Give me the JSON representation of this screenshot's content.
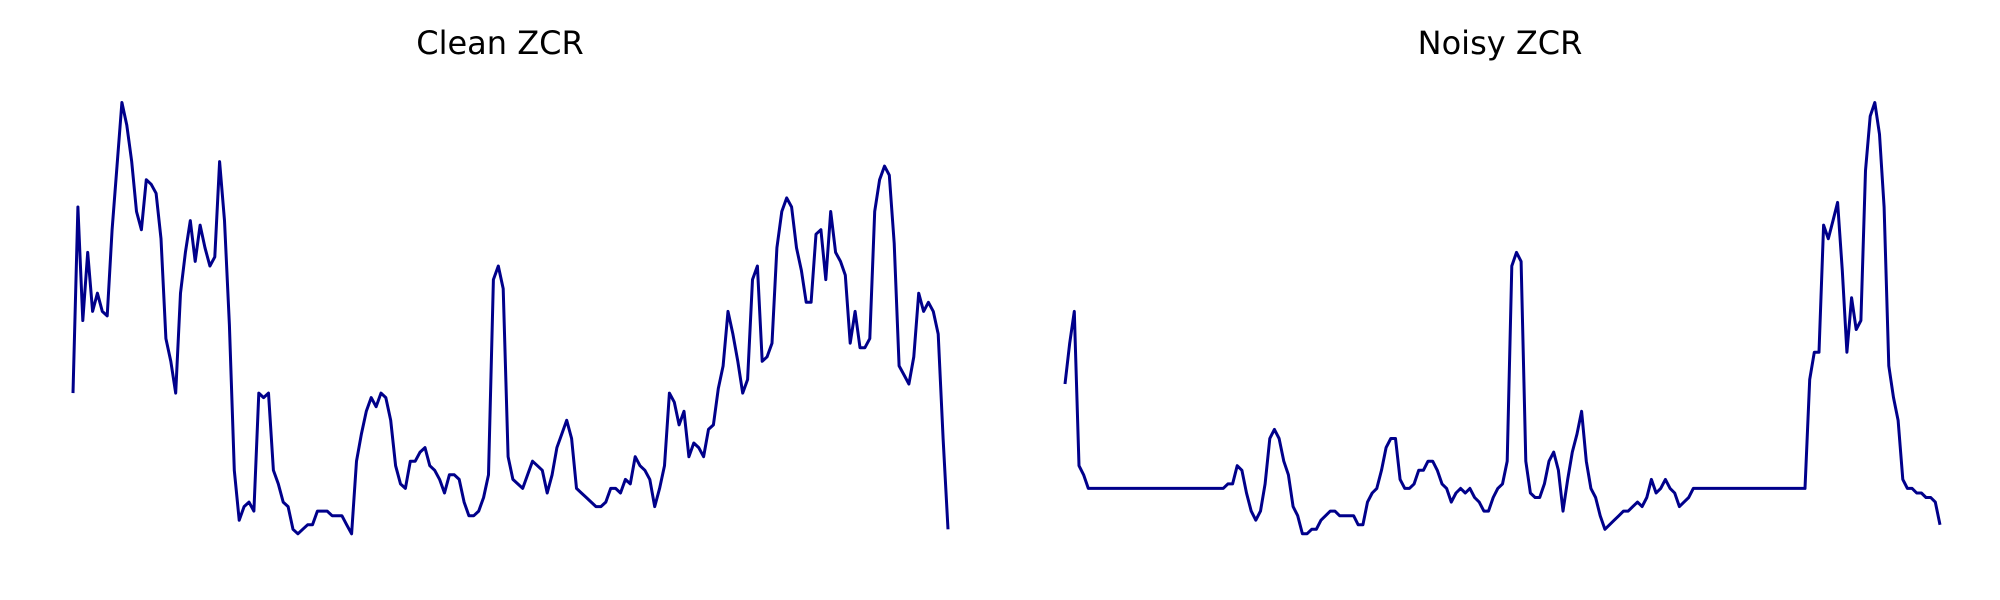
{
  "colors": {
    "line": "#00008B",
    "background": "#ffffff"
  },
  "chart_data": [
    {
      "type": "line",
      "title": "Clean ZCR",
      "xlabel": "",
      "ylabel": "",
      "axes": "off",
      "grid": false,
      "xlim": [
        0,
        118
      ],
      "ylim": [
        0,
        1
      ],
      "series": [
        {
          "values": [
            0.35,
            0.76,
            0.51,
            0.66,
            0.53,
            0.57,
            0.53,
            0.52,
            0.71,
            0.85,
            0.99,
            0.94,
            0.86,
            0.75,
            0.71,
            0.82,
            0.81,
            0.79,
            0.69,
            0.47,
            0.42,
            0.35,
            0.57,
            0.66,
            0.73,
            0.64,
            0.72,
            0.67,
            0.63,
            0.65,
            0.86,
            0.73,
            0.5,
            0.18,
            0.07,
            0.1,
            0.11,
            0.09,
            0.35,
            0.34,
            0.35,
            0.18,
            0.15,
            0.11,
            0.1,
            0.05,
            0.04,
            0.05,
            0.06,
            0.06,
            0.09,
            0.09,
            0.09,
            0.08,
            0.08,
            0.08,
            0.06,
            0.04,
            0.2,
            0.26,
            0.31,
            0.34,
            0.32,
            0.35,
            0.34,
            0.29,
            0.19,
            0.15,
            0.14,
            0.2,
            0.2,
            0.22,
            0.23,
            0.19,
            0.18,
            0.16,
            0.13,
            0.17,
            0.17,
            0.16,
            0.11,
            0.08,
            0.08,
            0.09,
            0.12,
            0.17,
            0.6,
            0.63,
            0.58,
            0.21,
            0.16,
            0.15,
            0.14,
            0.17,
            0.2,
            0.19,
            0.18,
            0.13,
            0.17,
            0.23,
            0.26,
            0.29,
            0.25,
            0.14,
            0.13,
            0.12,
            0.11,
            0.1,
            0.1,
            0.11,
            0.14,
            0.14,
            0.13,
            0.16,
            0.15,
            0.21,
            0.19,
            0.18,
            0.16,
            0.1,
            0.14,
            0.19,
            0.35,
            0.33,
            0.28,
            0.31,
            0.21,
            0.24,
            0.23,
            0.21,
            0.27,
            0.28,
            0.36,
            0.41,
            0.53,
            0.48,
            0.42,
            0.35,
            0.38,
            0.6,
            0.63,
            0.42,
            0.43,
            0.46,
            0.67,
            0.75,
            0.78,
            0.76,
            0.67,
            0.62,
            0.55,
            0.55,
            0.7,
            0.71,
            0.6,
            0.75,
            0.66,
            0.64,
            0.61,
            0.46,
            0.53,
            0.45,
            0.45,
            0.47,
            0.75,
            0.82,
            0.85,
            0.83,
            0.68,
            0.41,
            0.39,
            0.37,
            0.43,
            0.57,
            0.53,
            0.55,
            0.53,
            0.48,
            0.25,
            0.05
          ]
        }
      ]
    },
    {
      "type": "line",
      "title": "Noisy ZCR",
      "xlabel": "",
      "ylabel": "",
      "axes": "off",
      "grid": false,
      "xlim": [
        0,
        118
      ],
      "ylim": [
        0,
        1
      ],
      "series": [
        {
          "values": [
            0.37,
            0.46,
            0.53,
            0.19,
            0.17,
            0.14,
            0.14,
            0.14,
            0.14,
            0.14,
            0.14,
            0.14,
            0.14,
            0.14,
            0.14,
            0.14,
            0.14,
            0.14,
            0.14,
            0.14,
            0.14,
            0.14,
            0.14,
            0.14,
            0.14,
            0.14,
            0.14,
            0.14,
            0.14,
            0.14,
            0.14,
            0.14,
            0.14,
            0.14,
            0.14,
            0.15,
            0.15,
            0.19,
            0.18,
            0.13,
            0.09,
            0.07,
            0.09,
            0.15,
            0.25,
            0.27,
            0.25,
            0.2,
            0.17,
            0.1,
            0.08,
            0.04,
            0.04,
            0.05,
            0.05,
            0.07,
            0.08,
            0.09,
            0.09,
            0.08,
            0.08,
            0.08,
            0.08,
            0.06,
            0.06,
            0.11,
            0.13,
            0.14,
            0.18,
            0.23,
            0.25,
            0.25,
            0.16,
            0.14,
            0.14,
            0.15,
            0.18,
            0.18,
            0.2,
            0.2,
            0.18,
            0.15,
            0.14,
            0.11,
            0.13,
            0.14,
            0.13,
            0.14,
            0.12,
            0.11,
            0.09,
            0.09,
            0.12,
            0.14,
            0.15,
            0.2,
            0.63,
            0.66,
            0.64,
            0.2,
            0.13,
            0.12,
            0.12,
            0.15,
            0.2,
            0.22,
            0.18,
            0.09,
            0.16,
            0.22,
            0.26,
            0.31,
            0.2,
            0.14,
            0.12,
            0.08,
            0.05,
            0.06,
            0.07,
            0.08,
            0.09,
            0.09,
            0.1,
            0.11,
            0.1,
            0.12,
            0.16,
            0.13,
            0.14,
            0.16,
            0.14,
            0.13,
            0.1,
            0.11,
            0.12,
            0.14,
            0.14,
            0.14,
            0.14,
            0.14,
            0.14,
            0.14,
            0.14,
            0.14,
            0.14,
            0.14,
            0.14,
            0.14,
            0.14,
            0.14,
            0.14,
            0.14,
            0.14,
            0.14,
            0.14,
            0.14,
            0.14,
            0.14,
            0.14,
            0.14,
            0.38,
            0.44,
            0.44,
            0.72,
            0.69,
            0.73,
            0.77,
            0.62,
            0.44,
            0.56,
            0.49,
            0.51,
            0.84,
            0.96,
            0.99,
            0.92,
            0.76,
            0.41,
            0.34,
            0.29,
            0.16,
            0.14,
            0.14,
            0.13,
            0.13,
            0.12,
            0.12,
            0.11,
            0.06
          ]
        }
      ]
    }
  ]
}
